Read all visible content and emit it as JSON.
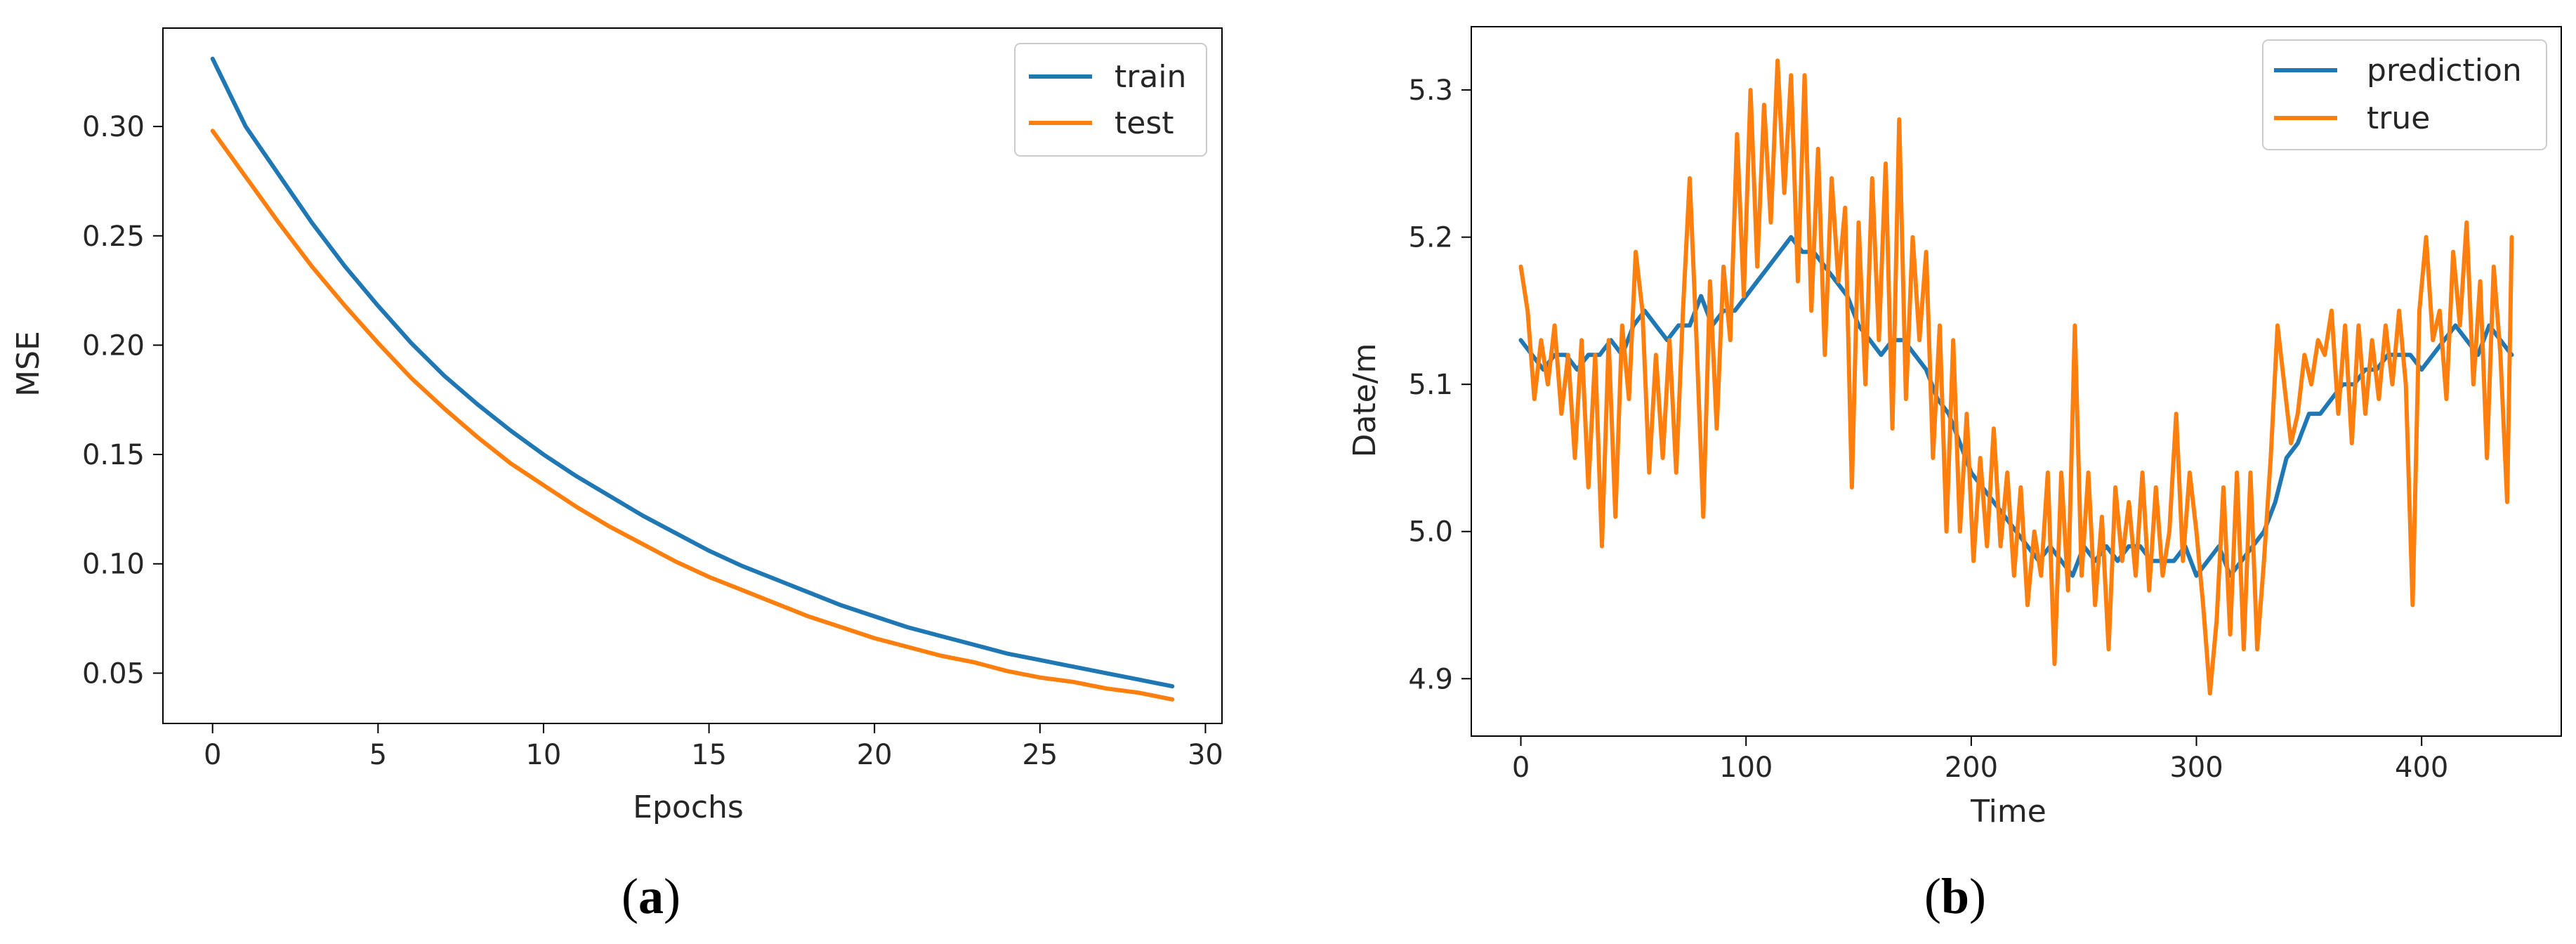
{
  "chart_data": [
    {
      "type": "line",
      "panel_label": "a",
      "xlabel": "Epochs",
      "ylabel": "MSE",
      "xlim": [
        -1.5,
        30.5
      ],
      "ylim": [
        0.027,
        0.345
      ],
      "xticks": [
        0,
        5,
        10,
        15,
        20,
        25,
        30
      ],
      "yticks": [
        0.05,
        0.1,
        0.15,
        0.2,
        0.25,
        0.3
      ],
      "ytick_labels": [
        "0.05",
        "0.10",
        "0.15",
        "0.20",
        "0.25",
        "0.30"
      ],
      "grid": false,
      "legend_position": "top-right",
      "x": [
        0,
        1,
        2,
        3,
        4,
        5,
        6,
        7,
        8,
        9,
        10,
        11,
        12,
        13,
        14,
        15,
        16,
        17,
        18,
        19,
        20,
        21,
        22,
        23,
        24,
        25,
        26,
        27,
        28,
        29
      ],
      "series": [
        {
          "name": "train",
          "color": "#1f77b4",
          "values": [
            0.331,
            0.3,
            0.278,
            0.256,
            0.236,
            0.218,
            0.201,
            0.186,
            0.173,
            0.161,
            0.15,
            0.14,
            0.131,
            0.122,
            0.114,
            0.106,
            0.099,
            0.093,
            0.087,
            0.081,
            0.076,
            0.071,
            0.067,
            0.063,
            0.059,
            0.056,
            0.053,
            0.05,
            0.047,
            0.044
          ]
        },
        {
          "name": "test",
          "color": "#ff7f0e",
          "values": [
            0.298,
            0.277,
            0.256,
            0.236,
            0.218,
            0.201,
            0.185,
            0.171,
            0.158,
            0.146,
            0.136,
            0.126,
            0.117,
            0.109,
            0.101,
            0.094,
            0.088,
            0.082,
            0.076,
            0.071,
            0.066,
            0.062,
            0.058,
            0.055,
            0.051,
            0.048,
            0.046,
            0.043,
            0.041,
            0.038
          ]
        }
      ]
    },
    {
      "type": "line",
      "panel_label": "b",
      "xlabel": "Time",
      "ylabel": "Date/m",
      "xlim": [
        -22,
        462
      ],
      "ylim": [
        4.861,
        5.343
      ],
      "xticks": [
        0,
        100,
        200,
        300,
        400
      ],
      "yticks": [
        4.9,
        5.0,
        5.1,
        5.2,
        5.3
      ],
      "ytick_labels": [
        "4.9",
        "5.0",
        "5.1",
        "5.2",
        "5.3"
      ],
      "grid": false,
      "legend_position": "top-right",
      "series": [
        {
          "name": "prediction",
          "color": "#1f77b4",
          "x": [
            0,
            5,
            10,
            15,
            20,
            25,
            30,
            35,
            40,
            45,
            50,
            55,
            60,
            65,
            70,
            75,
            80,
            85,
            90,
            95,
            100,
            105,
            110,
            115,
            120,
            125,
            130,
            135,
            140,
            145,
            150,
            155,
            160,
            165,
            170,
            175,
            180,
            185,
            190,
            195,
            200,
            205,
            210,
            215,
            220,
            225,
            230,
            235,
            240,
            245,
            250,
            255,
            260,
            265,
            270,
            275,
            280,
            285,
            290,
            295,
            300,
            305,
            310,
            315,
            320,
            325,
            330,
            335,
            340,
            345,
            350,
            355,
            360,
            365,
            370,
            375,
            380,
            385,
            390,
            395,
            400,
            405,
            410,
            415,
            420,
            425,
            430,
            435,
            440
          ],
          "y": [
            5.13,
            5.12,
            5.11,
            5.12,
            5.12,
            5.11,
            5.12,
            5.12,
            5.13,
            5.12,
            5.14,
            5.15,
            5.14,
            5.13,
            5.14,
            5.14,
            5.16,
            5.14,
            5.15,
            5.15,
            5.16,
            5.17,
            5.18,
            5.19,
            5.2,
            5.19,
            5.19,
            5.18,
            5.17,
            5.16,
            5.14,
            5.13,
            5.12,
            5.13,
            5.13,
            5.12,
            5.11,
            5.09,
            5.08,
            5.06,
            5.04,
            5.03,
            5.02,
            5.01,
            5.0,
            4.99,
            4.98,
            4.99,
            4.98,
            4.97,
            4.99,
            4.98,
            4.99,
            4.98,
            4.99,
            4.99,
            4.98,
            4.98,
            4.98,
            4.99,
            4.97,
            4.98,
            4.99,
            4.97,
            4.98,
            4.99,
            5.0,
            5.02,
            5.05,
            5.06,
            5.08,
            5.08,
            5.09,
            5.1,
            5.1,
            5.11,
            5.11,
            5.12,
            5.12,
            5.12,
            5.11,
            5.12,
            5.13,
            5.14,
            5.13,
            5.12,
            5.14,
            5.13,
            5.12
          ]
        },
        {
          "name": "true",
          "color": "#ff7f0e",
          "x": [
            0,
            3,
            6,
            9,
            12,
            15,
            18,
            21,
            24,
            27,
            30,
            33,
            36,
            39,
            42,
            45,
            48,
            51,
            54,
            57,
            60,
            63,
            66,
            69,
            72,
            75,
            78,
            81,
            84,
            87,
            90,
            93,
            96,
            99,
            102,
            105,
            108,
            111,
            114,
            117,
            120,
            123,
            126,
            129,
            132,
            135,
            138,
            141,
            144,
            147,
            150,
            153,
            156,
            159,
            162,
            165,
            168,
            171,
            174,
            177,
            180,
            183,
            186,
            189,
            192,
            195,
            198,
            201,
            204,
            207,
            210,
            213,
            216,
            219,
            222,
            225,
            228,
            231,
            234,
            237,
            240,
            243,
            246,
            249,
            252,
            255,
            258,
            261,
            264,
            267,
            270,
            273,
            276,
            279,
            282,
            285,
            288,
            291,
            294,
            297,
            300,
            303,
            306,
            309,
            312,
            315,
            318,
            321,
            324,
            327,
            330,
            333,
            336,
            339,
            342,
            345,
            348,
            351,
            354,
            357,
            360,
            363,
            366,
            369,
            372,
            375,
            378,
            381,
            384,
            387,
            390,
            393,
            396,
            399,
            402,
            405,
            408,
            411,
            414,
            417,
            420,
            423,
            426,
            429,
            432,
            435,
            438,
            440
          ],
          "y": [
            5.18,
            5.15,
            5.09,
            5.13,
            5.1,
            5.14,
            5.08,
            5.12,
            5.05,
            5.13,
            5.03,
            5.12,
            4.99,
            5.13,
            5.01,
            5.14,
            5.09,
            5.19,
            5.15,
            5.04,
            5.12,
            5.05,
            5.13,
            5.04,
            5.15,
            5.24,
            5.13,
            5.01,
            5.17,
            5.07,
            5.18,
            5.13,
            5.27,
            5.16,
            5.3,
            5.18,
            5.29,
            5.21,
            5.32,
            5.23,
            5.31,
            5.17,
            5.31,
            5.15,
            5.26,
            5.12,
            5.24,
            5.17,
            5.22,
            5.03,
            5.21,
            5.1,
            5.24,
            5.13,
            5.25,
            5.07,
            5.28,
            5.09,
            5.2,
            5.13,
            5.19,
            5.05,
            5.14,
            5.0,
            5.13,
            5.0,
            5.08,
            4.98,
            5.05,
            4.99,
            5.07,
            4.99,
            5.04,
            4.97,
            5.03,
            4.95,
            5.0,
            4.97,
            5.04,
            4.91,
            5.04,
            4.96,
            5.14,
            4.97,
            5.04,
            4.95,
            5.01,
            4.92,
            5.03,
            4.98,
            5.02,
            4.97,
            5.04,
            4.96,
            5.03,
            4.97,
            5.0,
            5.08,
            4.98,
            5.04,
            5.0,
            4.95,
            4.89,
            4.94,
            5.03,
            4.93,
            5.04,
            4.92,
            5.04,
            4.92,
            4.98,
            5.05,
            5.14,
            5.1,
            5.06,
            5.08,
            5.12,
            5.1,
            5.13,
            5.12,
            5.15,
            5.08,
            5.14,
            5.06,
            5.14,
            5.08,
            5.13,
            5.09,
            5.14,
            5.1,
            5.15,
            5.1,
            4.95,
            5.15,
            5.2,
            5.13,
            5.15,
            5.09,
            5.19,
            5.14,
            5.21,
            5.1,
            5.17,
            5.05,
            5.18,
            5.12,
            5.02,
            5.2
          ]
        }
      ]
    }
  ]
}
